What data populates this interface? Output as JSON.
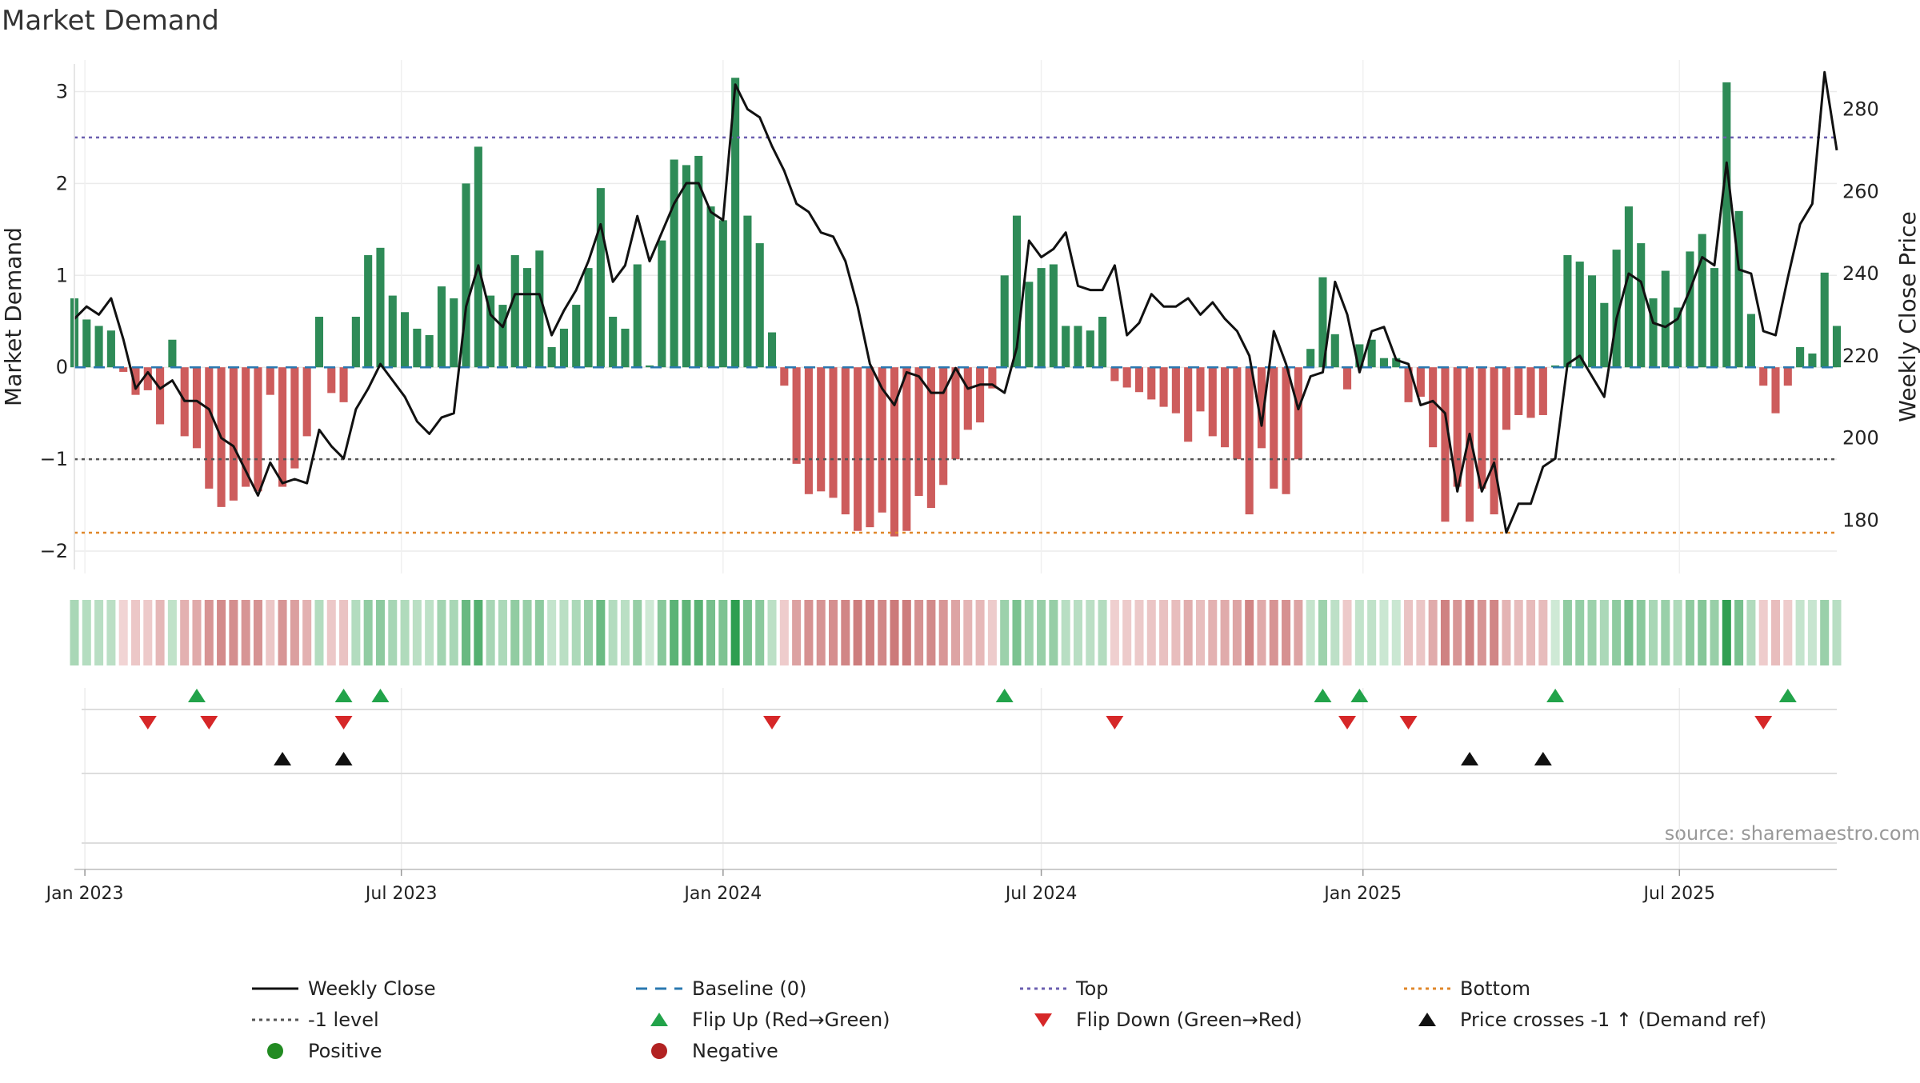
{
  "chart_data": {
    "type": "bar",
    "title": "Market Demand",
    "source": "source: sharemaestro.com",
    "ylabel": "Market Demand",
    "y2label": "Weekly Close Price",
    "ylim": [
      -2.2,
      3.3
    ],
    "y2lim": [
      168,
      291
    ],
    "yticks": [
      -2,
      -1,
      0,
      1,
      2,
      3
    ],
    "ytick_labels": [
      "−2",
      "−1",
      "0",
      "1",
      "2",
      "3"
    ],
    "y2ticks": [
      180,
      200,
      220,
      240,
      260,
      280
    ],
    "y2tick_labels": [
      "180",
      "200",
      "220",
      "240",
      "260",
      "280"
    ],
    "x_start": "2022-12-26",
    "x_end": "2025-09-29",
    "xtick_dates": [
      "2023-01-01",
      "2023-07-01",
      "2024-01-01",
      "2024-07-01",
      "2025-01-01",
      "2025-07-01"
    ],
    "xtick_labels": [
      "Jan 2023",
      "Jul 2023",
      "Jan 2024",
      "Jul 2024",
      "Jan 2025",
      "Jul 2025"
    ],
    "week_start": "2022-12-26",
    "reference_lines": {
      "top": 2.5,
      "minus_one": -1,
      "bottom": -1.8,
      "baseline": 0
    },
    "colors": {
      "positive": "#2e8b57",
      "negative": "#cd5c5c",
      "close": "#111111",
      "top": "#6b5fb0",
      "minus_one": "#555555",
      "bottom": "#e0872a",
      "baseline": "#2a78b0",
      "flip_up": "#22a34a",
      "flip_down": "#d62728",
      "cross": "#111111",
      "positive_dot": "#228b22",
      "negative_dot": "#b22222"
    },
    "demand": [
      0.75,
      0.52,
      0.45,
      0.4,
      -0.05,
      -0.3,
      -0.25,
      -0.62,
      0.3,
      -0.75,
      -0.88,
      -1.32,
      -1.52,
      -1.45,
      -1.3,
      -1.35,
      -0.3,
      -1.3,
      -1.1,
      -0.75,
      0.55,
      -0.28,
      -0.38,
      0.55,
      1.22,
      1.3,
      0.78,
      0.6,
      0.42,
      0.35,
      0.88,
      0.75,
      2.0,
      2.4,
      0.78,
      0.68,
      1.22,
      1.08,
      1.27,
      0.22,
      0.42,
      0.68,
      1.08,
      1.95,
      0.55,
      0.42,
      1.12,
      0.02,
      1.38,
      2.26,
      2.2,
      2.3,
      1.75,
      1.6,
      3.15,
      1.65,
      1.35,
      0.38,
      -0.2,
      -1.05,
      -1.38,
      -1.35,
      -1.42,
      -1.6,
      -1.78,
      -1.74,
      -1.58,
      -1.84,
      -1.78,
      -1.4,
      -1.53,
      -1.28,
      -1.0,
      -0.68,
      -0.6,
      -0.23,
      1.0,
      1.65,
      0.93,
      1.08,
      1.12,
      0.45,
      0.45,
      0.4,
      0.55,
      -0.15,
      -0.22,
      -0.27,
      -0.35,
      -0.43,
      -0.5,
      -0.81,
      -0.48,
      -0.75,
      -0.87,
      -1.0,
      -1.6,
      -0.88,
      -1.32,
      -1.38,
      -1.0,
      0.2,
      0.98,
      0.36,
      -0.24,
      0.25,
      0.3,
      0.1,
      0.1,
      -0.38,
      -0.32,
      -0.87,
      -1.68,
      -1.3,
      -1.68,
      -1.32,
      -1.6,
      -0.68,
      -0.52,
      -0.55,
      -0.52,
      0.02,
      1.22,
      1.15,
      1.0,
      0.7,
      1.28,
      1.75,
      1.35,
      0.75,
      1.05,
      0.65,
      1.26,
      1.45,
      1.08,
      3.1,
      1.7,
      0.58,
      -0.2,
      -0.5,
      -0.2,
      0.22,
      0.15,
      1.03,
      0.45
    ],
    "close": [
      229,
      232,
      230,
      234,
      224,
      212,
      216,
      212,
      214,
      209,
      209,
      207,
      200,
      198,
      192,
      186,
      194,
      189,
      190,
      189,
      202,
      198,
      195,
      207,
      212,
      218,
      214,
      210,
      204,
      201,
      205,
      206,
      232,
      242,
      230,
      227,
      235,
      235,
      235,
      225,
      231,
      236,
      243,
      252,
      238,
      242,
      254,
      243,
      250,
      257,
      262,
      262,
      255,
      253,
      286,
      280,
      278,
      271,
      265,
      257,
      255,
      250,
      249,
      243,
      232,
      218,
      212,
      208,
      216,
      215,
      211,
      211,
      217,
      212,
      213,
      213,
      211,
      222,
      248,
      244,
      246,
      250,
      237,
      236,
      236,
      242,
      225,
      228,
      235,
      232,
      232,
      234,
      230,
      233,
      229,
      226,
      220,
      203,
      226,
      218,
      207,
      215,
      216,
      238,
      230,
      216,
      226,
      227,
      219,
      218,
      208,
      209,
      206,
      187,
      201,
      187,
      194,
      177,
      184,
      184,
      193,
      195,
      218,
      220,
      215,
      210,
      229,
      240,
      238,
      228,
      227,
      229,
      236,
      244,
      242,
      267,
      241,
      240,
      226,
      225,
      239,
      252,
      257,
      289,
      270
    ],
    "flip_up_dates": [
      "2023-03-06",
      "2023-05-29",
      "2023-06-19",
      "2024-06-10",
      "2024-12-09",
      "2024-12-30",
      "2025-04-21",
      "2025-09-01"
    ],
    "flip_down_dates": [
      "2023-02-06",
      "2023-03-13",
      "2023-05-29",
      "2024-01-29",
      "2024-08-12",
      "2024-12-23",
      "2025-01-27",
      "2025-08-18"
    ],
    "cross_dates": [
      "2023-04-24",
      "2023-05-29",
      "2025-03-03",
      "2025-04-14"
    ],
    "legend": [
      {
        "key": "close",
        "label": "Weekly Close",
        "style": "line"
      },
      {
        "key": "baseline",
        "label": "Baseline (0)",
        "style": "dash"
      },
      {
        "key": "top",
        "label": "Top",
        "style": "dot"
      },
      {
        "key": "bottom",
        "label": "Bottom",
        "style": "dot"
      },
      {
        "key": "minus_one",
        "label": "-1 level",
        "style": "dot"
      },
      {
        "key": "flip_up",
        "label": "Flip Up (Red→Green)",
        "style": "tri-up"
      },
      {
        "key": "flip_down",
        "label": "Flip Down (Green→Red)",
        "style": "tri-down"
      },
      {
        "key": "cross",
        "label": "Price crosses -1 ↑ (Demand ref)",
        "style": "tri-up"
      },
      {
        "key": "positive_dot",
        "label": "Positive",
        "style": "dot-marker"
      },
      {
        "key": "negative_dot",
        "label": "Negative",
        "style": "dot-marker"
      }
    ]
  }
}
